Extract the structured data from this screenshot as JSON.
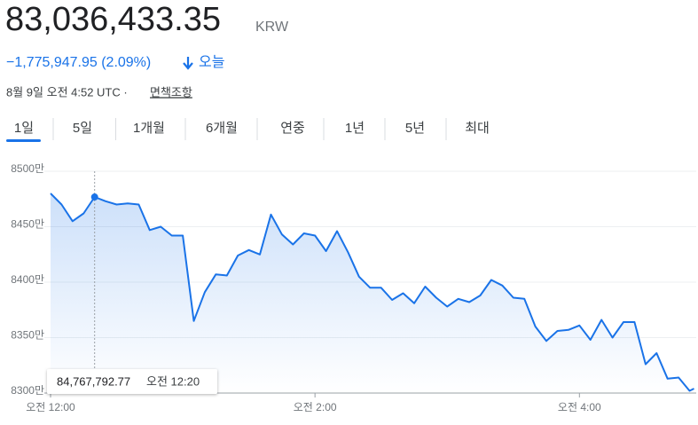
{
  "header": {
    "price": "83,036,433.35",
    "currency": "KRW",
    "change": "−1,775,947.95 (2.09%)",
    "period": "오늘",
    "timestamp": "8월 9일 오전 4:52 UTC · ",
    "disclaimer": "면책조항"
  },
  "tabs": [
    "1일",
    "5일",
    "1개월",
    "6개월",
    "연중",
    "1년",
    "5년",
    "최대"
  ],
  "chart_data": {
    "type": "line",
    "color": "#1a73e8",
    "x": [
      0,
      5,
      10,
      15,
      20,
      25,
      30,
      35,
      40,
      45,
      50,
      55,
      60,
      65,
      70,
      75,
      80,
      85,
      90,
      95,
      100,
      105,
      110,
      115,
      120,
      125,
      130,
      135,
      140,
      145,
      150,
      155,
      160,
      165,
      170,
      175,
      180,
      185,
      190,
      195,
      200,
      205,
      210,
      215,
      220,
      225,
      230,
      235,
      240,
      245,
      250,
      255,
      260,
      265,
      270,
      275,
      280,
      285,
      290,
      292
    ],
    "series": [
      {
        "name": "KRW",
        "color": "#1a73e8",
        "values": [
          8480,
          8470,
          8455,
          8462,
          8476.779277,
          8473,
          8470,
          8471,
          8470,
          8447,
          8450,
          8442,
          8442,
          8365,
          8391,
          8407,
          8406,
          8424,
          8429,
          8425,
          8461,
          8443,
          8434,
          8444,
          8442,
          8428,
          8446,
          8427,
          8405,
          8395,
          8395,
          8384,
          8390,
          8381,
          8396,
          8386,
          8378,
          8385,
          8382,
          8388,
          8402,
          8397,
          8386,
          8385,
          8360,
          8347,
          8356,
          8357,
          8361,
          8348,
          8366,
          8350,
          8364,
          8364,
          8326,
          8336,
          8313,
          8314,
          8302,
          8304
        ]
      }
    ],
    "xlim": [
      0,
      293
    ],
    "xticks": [
      {
        "value": 0,
        "label": "오전 12:00"
      },
      {
        "value": 120,
        "label": "오전 2:00"
      },
      {
        "value": 240,
        "label": "오전 4:00"
      }
    ],
    "ylim": [
      8300,
      8500
    ],
    "yticks": [
      {
        "value": 8300,
        "label": "8300만"
      },
      {
        "value": 8350,
        "label": "8350만"
      },
      {
        "value": 8400,
        "label": "8400만"
      },
      {
        "value": 8450,
        "label": "8450만"
      },
      {
        "value": 8500,
        "label": "8500만"
      }
    ],
    "grid": true,
    "tooltip": {
      "index": 4,
      "value_label": "84,767,792.77",
      "time": "오전 12:20"
    }
  }
}
